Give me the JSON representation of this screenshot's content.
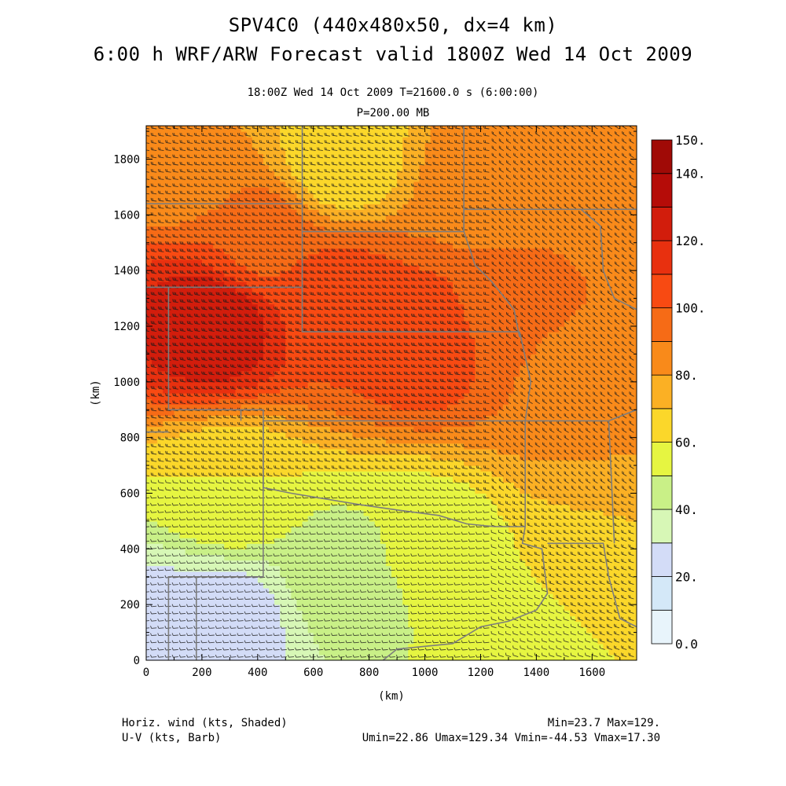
{
  "header": {
    "title_line1": "SPV4C0 (440x480x50, dx=4 km)",
    "title_line2": "6:00 h WRF/ARW Forecast valid 1800Z Wed 14 Oct 2009",
    "subtitle_line1": "18:00Z Wed 14 Oct 2009     T=21600.0 s (6:00:00)",
    "subtitle_line2": "P=200.00 MB"
  },
  "footer": {
    "left_line1": "Horiz. wind (kts, Shaded)",
    "left_line2": "U-V (kts, Barb)",
    "right_line1": "Min=23.7 Max=129.",
    "right_line2": "Umin=22.86 Umax=129.34 Vmin=-44.53 Vmax=17.30"
  },
  "chart_data": {
    "type": "heatmap",
    "xlabel": "(km)",
    "ylabel": "(km)",
    "xlim": [
      0,
      1760
    ],
    "ylim": [
      0,
      1920
    ],
    "x_ticks": [
      0,
      200,
      400,
      600,
      800,
      1000,
      1200,
      1400,
      1600
    ],
    "y_ticks": [
      0,
      200,
      400,
      600,
      800,
      1000,
      1200,
      1400,
      1600,
      1800
    ],
    "colorbar": {
      "levels": [
        0,
        10,
        20,
        30,
        40,
        50,
        60,
        70,
        80,
        90,
        100,
        110,
        120,
        130,
        140,
        150
      ],
      "labels": [
        "0.0",
        "20.",
        "40.",
        "60.",
        "80.",
        "100.",
        "120.",
        "140.",
        "150."
      ],
      "label_values": [
        0,
        20,
        40,
        60,
        80,
        100,
        120,
        140,
        150
      ],
      "colors": [
        "#e8f4fb",
        "#d4e8f8",
        "#d3dcf7",
        "#d7f7b6",
        "#c9f087",
        "#e6f541",
        "#fbd72a",
        "#fbb024",
        "#f98a1a",
        "#f66b16",
        "#f84a12",
        "#e8300f",
        "#d21d0c",
        "#b50c08",
        "#a00a06"
      ]
    },
    "field_centers": [
      {
        "x": 240,
        "y": 1220,
        "speed": 129
      },
      {
        "x": 700,
        "y": 1300,
        "speed": 105
      },
      {
        "x": 1000,
        "y": 1150,
        "speed": 108
      },
      {
        "x": 1300,
        "y": 1250,
        "speed": 95
      },
      {
        "x": 1500,
        "y": 1050,
        "speed": 88
      },
      {
        "x": 400,
        "y": 1500,
        "speed": 98
      },
      {
        "x": 1200,
        "y": 1700,
        "speed": 85
      },
      {
        "x": 150,
        "y": 1800,
        "speed": 80
      },
      {
        "x": 300,
        "y": 150,
        "speed": 25
      },
      {
        "x": 100,
        "y": 100,
        "speed": 24
      },
      {
        "x": 700,
        "y": 300,
        "speed": 45
      },
      {
        "x": 1000,
        "y": 400,
        "speed": 52
      },
      {
        "x": 300,
        "y": 600,
        "speed": 60
      },
      {
        "x": 1600,
        "y": 300,
        "speed": 65
      },
      {
        "x": 1700,
        "y": 800,
        "speed": 80
      },
      {
        "x": 1600,
        "y": 1800,
        "speed": 80
      },
      {
        "x": 700,
        "y": 1800,
        "speed": 62
      },
      {
        "x": 1400,
        "y": 100,
        "speed": 55
      }
    ],
    "state_borders": [
      [
        [
          560,
          1920
        ],
        [
          560,
          1640
        ],
        [
          0,
          1640
        ]
      ],
      [
        [
          560,
          1640
        ],
        [
          560,
          1540
        ],
        [
          1140,
          1540
        ],
        [
          1140,
          1920
        ]
      ],
      [
        [
          0,
          1340
        ],
        [
          560,
          1340
        ],
        [
          560,
          1540
        ]
      ],
      [
        [
          1140,
          1540
        ],
        [
          1140,
          1620
        ],
        [
          1560,
          1620
        ],
        [
          1630,
          1560
        ],
        [
          1640,
          1400
        ],
        [
          1680,
          1300
        ]
      ],
      [
        [
          1140,
          1540
        ],
        [
          1180,
          1420
        ],
        [
          1240,
          1360
        ],
        [
          1320,
          1260
        ],
        [
          1340,
          1160
        ]
      ],
      [
        [
          560,
          1340
        ],
        [
          560,
          1180
        ],
        [
          1340,
          1180
        ]
      ],
      [
        [
          1340,
          1180
        ],
        [
          1380,
          1000
        ],
        [
          1360,
          860
        ]
      ],
      [
        [
          80,
          1340
        ],
        [
          80,
          900
        ],
        [
          420,
          900
        ],
        [
          420,
          860
        ],
        [
          1360,
          860
        ],
        [
          1660,
          860
        ],
        [
          1760,
          900
        ]
      ],
      [
        [
          340,
          900
        ],
        [
          340,
          860
        ]
      ],
      [
        [
          420,
          860
        ],
        [
          420,
          300
        ],
        [
          80,
          300
        ],
        [
          80,
          0
        ]
      ],
      [
        [
          420,
          860
        ],
        [
          420,
          620
        ],
        [
          520,
          600
        ],
        [
          640,
          580
        ],
        [
          760,
          560
        ],
        [
          900,
          540
        ],
        [
          1050,
          520
        ],
        [
          1150,
          490
        ],
        [
          1250,
          480
        ],
        [
          1360,
          480
        ]
      ],
      [
        [
          1360,
          860
        ],
        [
          1360,
          480
        ]
      ],
      [
        [
          1360,
          480
        ],
        [
          1350,
          420
        ],
        [
          1420,
          400
        ],
        [
          1440,
          240
        ],
        [
          1400,
          180
        ]
      ],
      [
        [
          1440,
          420
        ],
        [
          1640,
          420
        ],
        [
          1660,
          300
        ],
        [
          1700,
          150
        ],
        [
          1760,
          120
        ]
      ],
      [
        [
          1400,
          180
        ],
        [
          1300,
          140
        ],
        [
          1200,
          120
        ],
        [
          1100,
          60
        ],
        [
          1000,
          50
        ],
        [
          900,
          40
        ],
        [
          850,
          0
        ]
      ],
      [
        [
          1560,
          1620
        ],
        [
          1760,
          1620
        ]
      ],
      [
        [
          1680,
          1300
        ],
        [
          1760,
          1260
        ]
      ],
      [
        [
          1660,
          860
        ],
        [
          1680,
          420
        ]
      ],
      [
        [
          0,
          820
        ],
        [
          80,
          820
        ]
      ],
      [
        [
          180,
          300
        ],
        [
          180,
          0
        ]
      ]
    ]
  }
}
